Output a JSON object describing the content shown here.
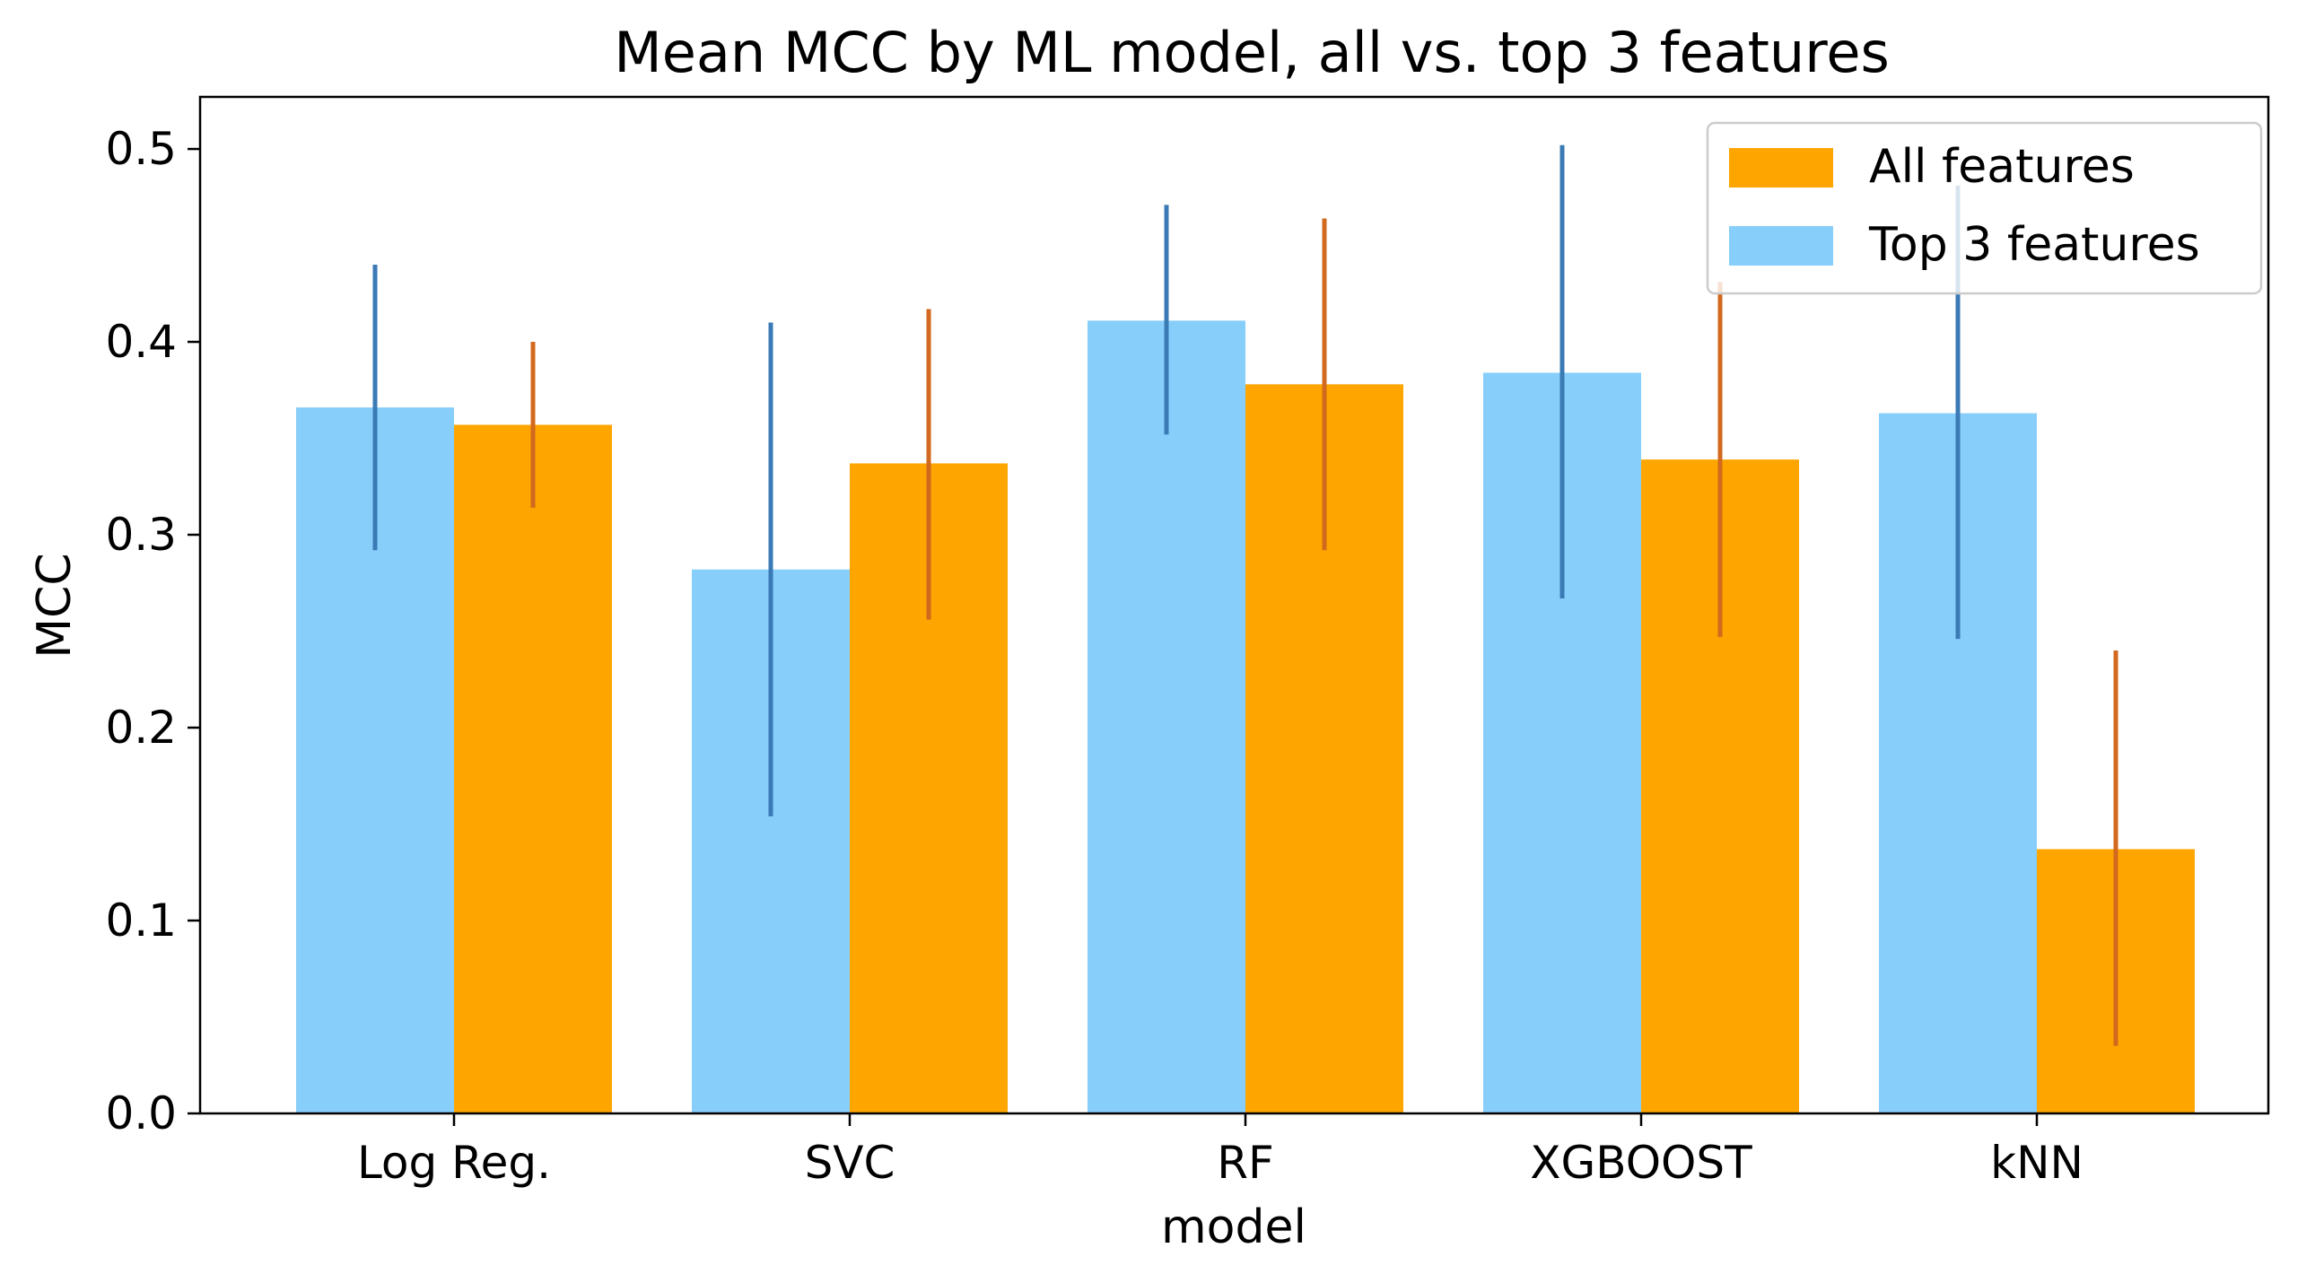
{
  "chart_data": {
    "type": "bar",
    "title": "Mean MCC by ML model, all vs. top 3 features",
    "xlabel": "model",
    "ylabel": "MCC",
    "ylim": [
      0,
      0.527
    ],
    "yticks": [
      "0.0",
      "0.1",
      "0.2",
      "0.3",
      "0.4",
      "0.5"
    ],
    "categories": [
      "Log Reg.",
      "SVC",
      "RF",
      "XGBOOST",
      "kNN"
    ],
    "legend_position": "top-right",
    "grid": false,
    "series": [
      {
        "name": "Top 3 features",
        "color": "#87CEFA",
        "error_color": "#3a7ab5",
        "values": [
          0.366,
          0.282,
          0.411,
          0.384,
          0.363
        ],
        "error_low": [
          0.292,
          0.154,
          0.352,
          0.267,
          0.246
        ],
        "error_high": [
          0.44,
          0.41,
          0.471,
          0.502,
          0.481
        ]
      },
      {
        "name": "All features",
        "color": "#FFA500",
        "error_color": "#d2691e",
        "values": [
          0.357,
          0.337,
          0.378,
          0.339,
          0.137
        ],
        "error_low": [
          0.314,
          0.256,
          0.292,
          0.247,
          0.035
        ],
        "error_high": [
          0.4,
          0.417,
          0.464,
          0.431,
          0.24
        ]
      }
    ],
    "legend_order": [
      "All features",
      "Top 3 features"
    ]
  }
}
